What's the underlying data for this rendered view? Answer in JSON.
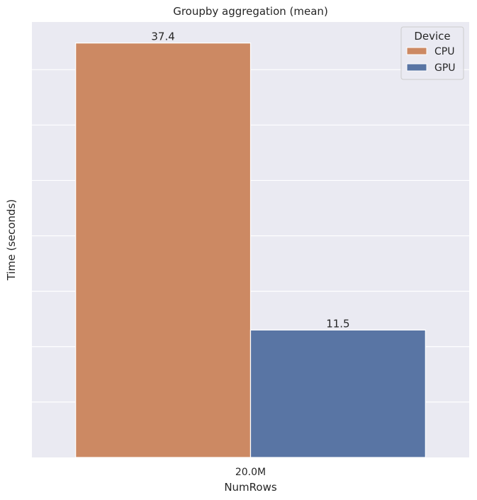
{
  "chart_data": {
    "type": "bar",
    "title": "Groupby aggregation (mean)",
    "xlabel": "NumRows",
    "ylabel": "Time (seconds)",
    "categories": [
      "20.0M"
    ],
    "series": [
      {
        "name": "CPU",
        "values": [
          37.4
        ],
        "color": "#cc8963"
      },
      {
        "name": "GPU",
        "values": [
          11.5
        ],
        "color": "#5975a4"
      }
    ],
    "data_labels": [
      "37.4",
      "11.5"
    ],
    "ylim": [
      0,
      39.3
    ],
    "y_gridlines": [
      5,
      10,
      15,
      20,
      25,
      30,
      35
    ],
    "y_tick_labels_shown": false,
    "grid": true,
    "background_color": "#eaeaf2",
    "legend": {
      "title": "Device",
      "position": "top-right"
    }
  }
}
